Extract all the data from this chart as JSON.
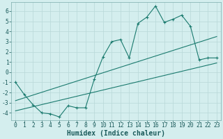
{
  "xlabel": "Humidex (Indice chaleur)",
  "background_color": "#d4eeee",
  "grid_color": "#b8d8d8",
  "line_color": "#1a7a6e",
  "xlim": [
    -0.5,
    23.5
  ],
  "ylim": [
    -4.7,
    6.9
  ],
  "xticks": [
    0,
    1,
    2,
    3,
    4,
    5,
    6,
    7,
    8,
    9,
    10,
    11,
    12,
    13,
    14,
    15,
    16,
    17,
    18,
    19,
    20,
    21,
    22,
    23
  ],
  "yticks": [
    -4,
    -3,
    -2,
    -1,
    0,
    1,
    2,
    3,
    4,
    5,
    6
  ],
  "line1_x": [
    0,
    1,
    2,
    3,
    4,
    5,
    6,
    7,
    8,
    9,
    10,
    11,
    12,
    13,
    14,
    15,
    16,
    17,
    18,
    19,
    20,
    21,
    22,
    23
  ],
  "line1_y": [
    -1.0,
    -2.2,
    -3.2,
    -4.0,
    -4.1,
    -4.4,
    -3.3,
    -3.5,
    -3.5,
    -0.7,
    1.5,
    3.0,
    3.2,
    1.4,
    4.8,
    5.4,
    6.5,
    4.9,
    5.2,
    5.6,
    4.5,
    1.2,
    1.4,
    1.4
  ],
  "line2_x": [
    0,
    23
  ],
  "line2_y": [
    -2.8,
    3.5
  ],
  "line3_x": [
    0,
    23
  ],
  "line3_y": [
    -3.8,
    0.9
  ],
  "fontsize_label": 6.5,
  "fontsize_tick": 5.8,
  "fontsize_xlabel": 7.0
}
